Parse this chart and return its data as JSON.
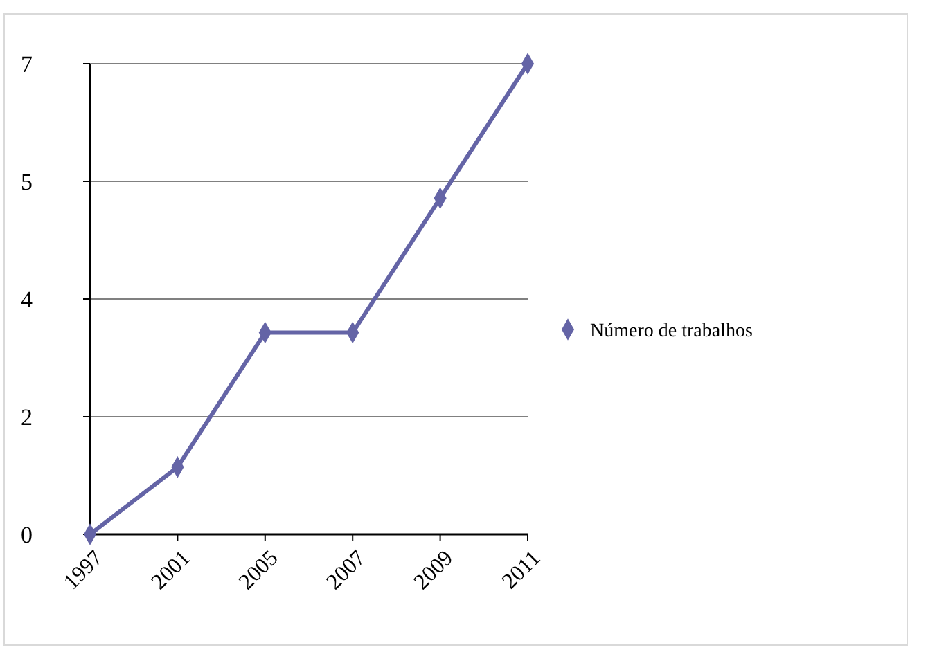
{
  "chart_data": {
    "type": "line",
    "categories": [
      "1997",
      "2001",
      "2005",
      "2007",
      "2009",
      "2011"
    ],
    "series": [
      {
        "name": "Número de trabalhos",
        "color": "#6464a6",
        "values": [
          0,
          1,
          3,
          3,
          5,
          7
        ]
      }
    ],
    "ylim": [
      0,
      7
    ],
    "yticks": [
      0,
      {
        "value": 1.75,
        "label": "2"
      },
      {
        "value": 3.5,
        "label": "4"
      },
      {
        "value": 5.25,
        "label": "5"
      },
      7
    ],
    "grid": "y",
    "legend": "right",
    "marker": "diamond",
    "line_style": "solid"
  }
}
